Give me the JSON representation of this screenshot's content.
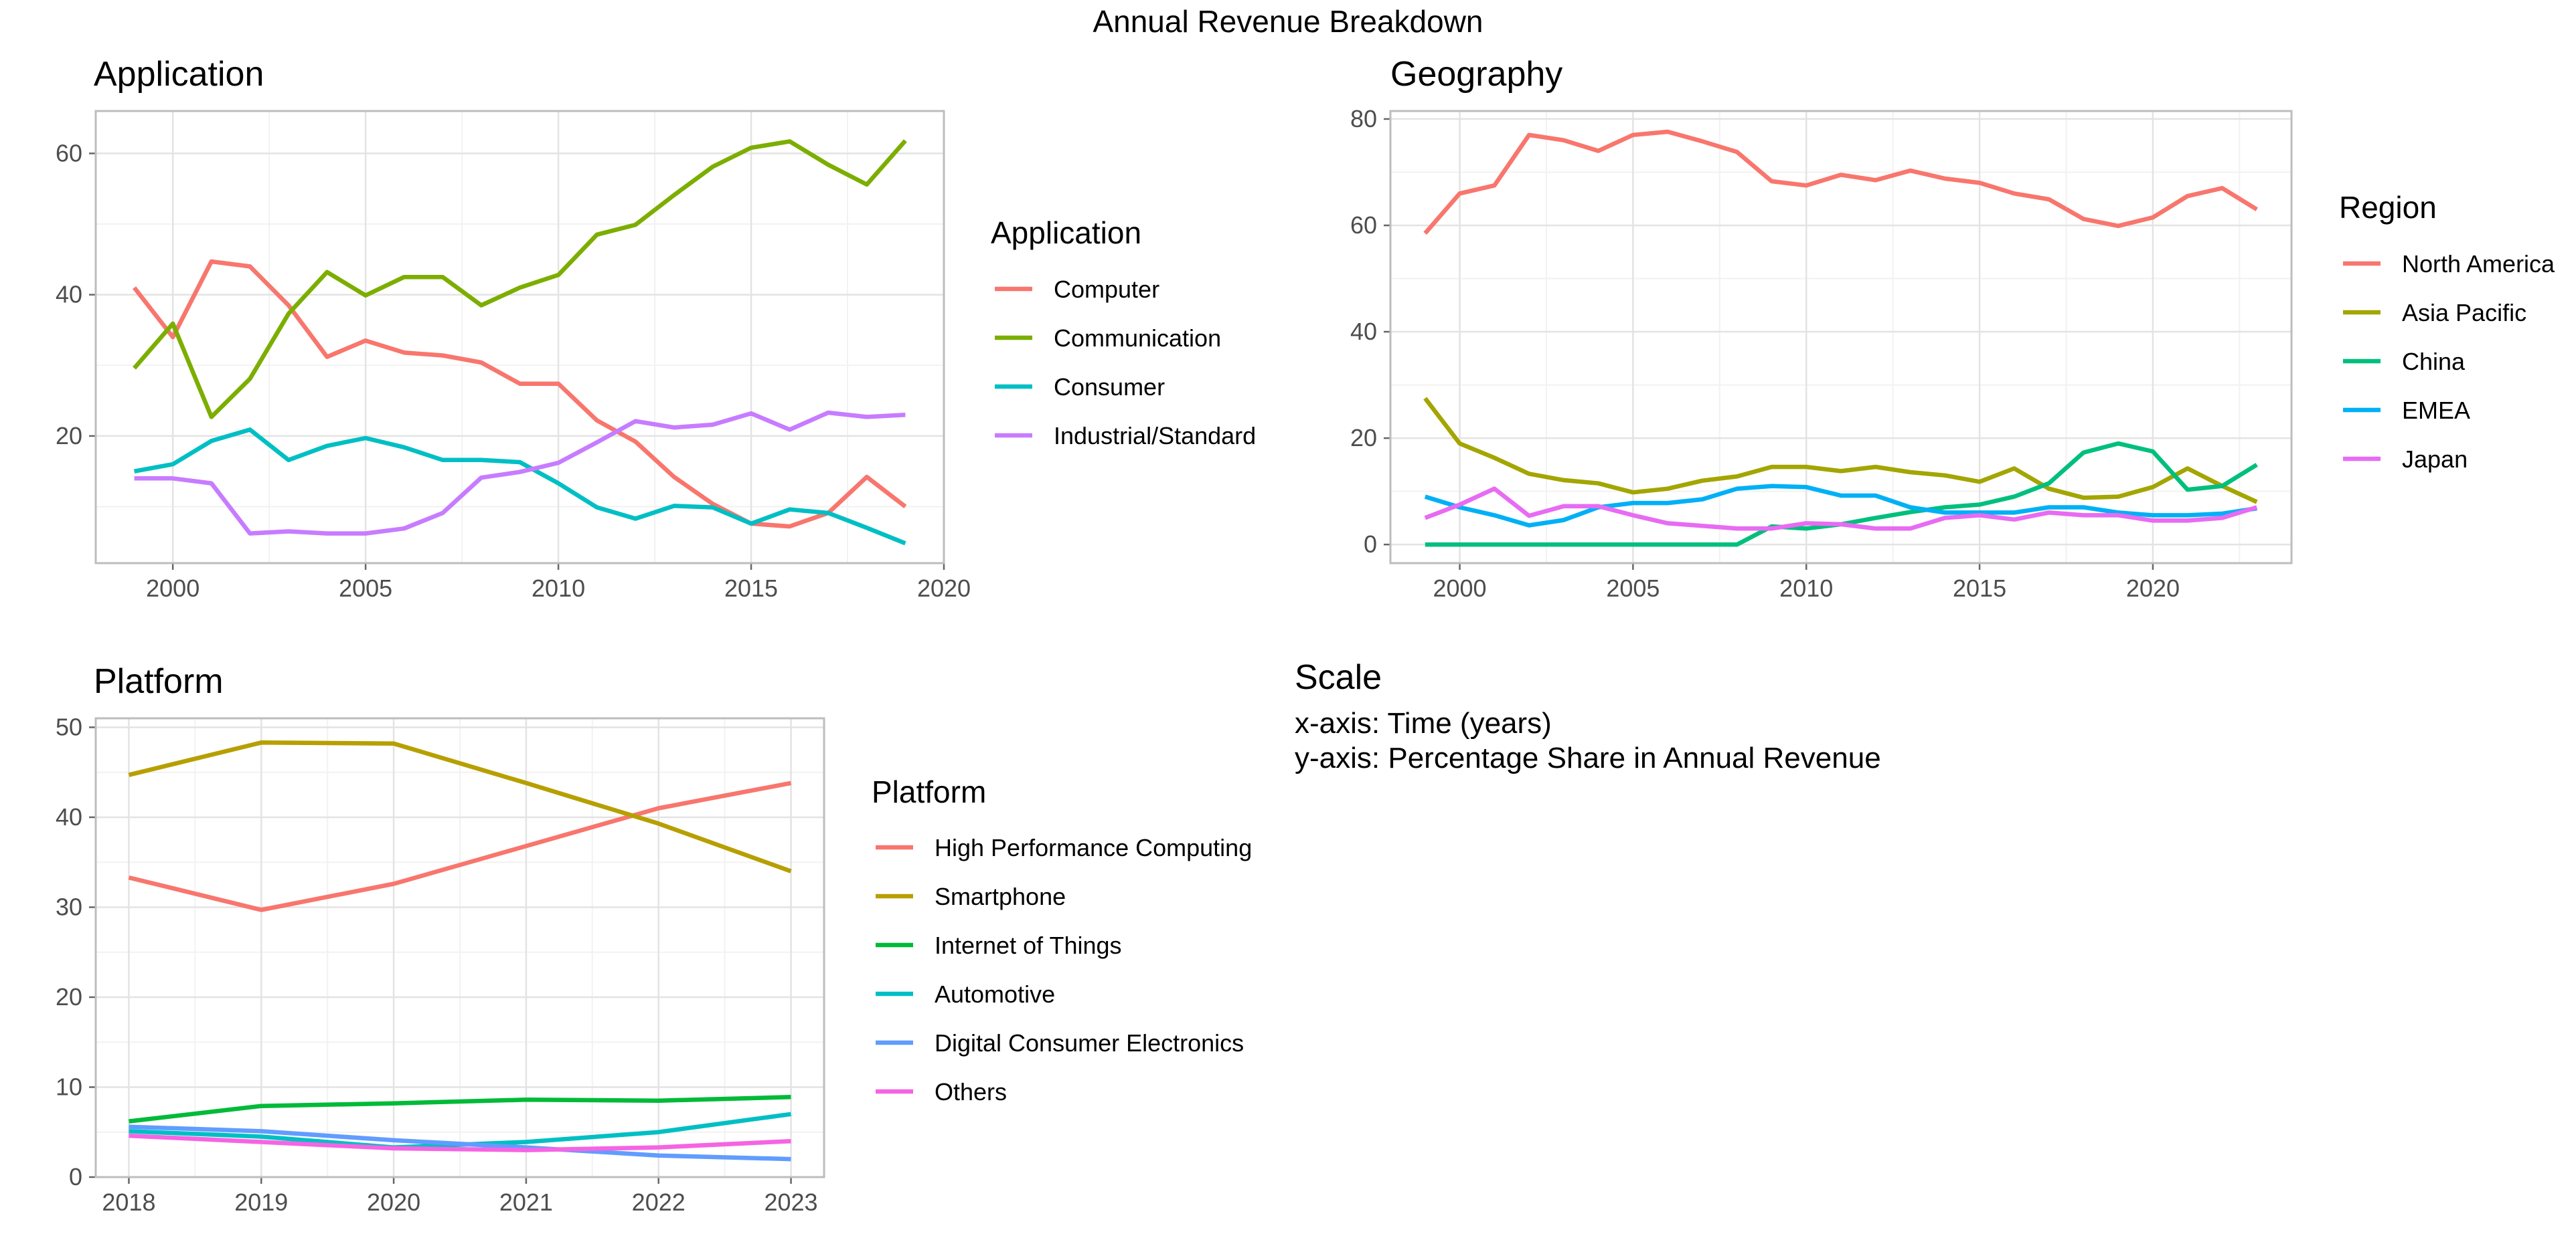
{
  "figure_title": "Annual Revenue Breakdown",
  "scale": {
    "title": "Scale",
    "x_line": "x-axis: Time (years)",
    "y_line": "y-axis: Percentage Share in Annual Revenue"
  },
  "chart_data": [
    {
      "id": "application",
      "type": "line",
      "title": "Application",
      "legend_title": "Application",
      "legend_position": "right",
      "grid": true,
      "xlabel": "",
      "ylabel": "",
      "xlim": [
        1998,
        2020
      ],
      "ylim": [
        2,
        66
      ],
      "xticks": [
        2000,
        2005,
        2010,
        2015,
        2020
      ],
      "yticks": [
        20,
        40,
        60
      ],
      "x": [
        1999,
        2000,
        2001,
        2002,
        2003,
        2004,
        2005,
        2006,
        2007,
        2008,
        2009,
        2010,
        2011,
        2012,
        2013,
        2014,
        2015,
        2016,
        2017,
        2018,
        2019
      ],
      "series": [
        {
          "name": "Computer",
          "color": "#F8766D",
          "values": [
            41,
            34,
            44.7,
            44,
            38.5,
            31.2,
            33.5,
            31.8,
            31.4,
            30.4,
            27.4,
            27.4,
            22.2,
            19.2,
            14.2,
            10.4,
            7.6,
            7.2,
            9.1,
            14.2,
            10
          ]
        },
        {
          "name": "Communication",
          "color": "#7CAE00",
          "values": [
            29.6,
            35.9,
            22.7,
            28.1,
            37.3,
            43.2,
            39.9,
            42.5,
            42.5,
            38.5,
            41,
            42.8,
            48.5,
            49.9,
            54.1,
            58.1,
            60.8,
            61.7,
            58.4,
            55.6,
            61.8
          ]
        },
        {
          "name": "Consumer",
          "color": "#00BFC4",
          "values": [
            15,
            16,
            19.3,
            20.9,
            16.6,
            18.6,
            19.7,
            18.4,
            16.6,
            16.6,
            16.3,
            13.3,
            9.9,
            8.3,
            10.1,
            9.9,
            7.6,
            9.6,
            9.1,
            7,
            4.8
          ]
        },
        {
          "name": "Industrial/Standard",
          "color": "#C77CFF",
          "values": [
            14,
            14,
            13.3,
            6.2,
            6.5,
            6.2,
            6.2,
            6.9,
            9.1,
            14.1,
            14.9,
            16.2,
            19.1,
            22.1,
            21.2,
            21.6,
            23.2,
            20.9,
            23.3,
            22.7,
            23
          ]
        }
      ]
    },
    {
      "id": "geography",
      "type": "line",
      "title": "Geography",
      "legend_title": "Region",
      "legend_position": "right",
      "grid": true,
      "xlabel": "",
      "ylabel": "",
      "xlim": [
        1998,
        2024
      ],
      "ylim": [
        -3.5,
        81.5
      ],
      "xticks": [
        2000,
        2005,
        2010,
        2015,
        2020
      ],
      "yticks": [
        0,
        20,
        40,
        60,
        80
      ],
      "x": [
        1999,
        2000,
        2001,
        2002,
        2003,
        2004,
        2005,
        2006,
        2007,
        2008,
        2009,
        2010,
        2011,
        2012,
        2013,
        2014,
        2015,
        2016,
        2017,
        2018,
        2019,
        2020,
        2021,
        2022,
        2023
      ],
      "series": [
        {
          "name": "North America",
          "color": "#F8766D",
          "values": [
            58.5,
            66,
            67.5,
            77,
            76,
            74,
            77,
            77.6,
            75.8,
            73.8,
            68.3,
            67.5,
            69.5,
            68.5,
            70.3,
            68.8,
            68,
            66,
            64.9,
            61.2,
            59.9,
            61.5,
            65.5,
            67,
            63
          ]
        },
        {
          "name": "Asia Pacific",
          "color": "#A3A500",
          "values": [
            27.5,
            19,
            16.3,
            13.3,
            12.1,
            11.5,
            9.8,
            10.5,
            12,
            12.8,
            14.6,
            14.6,
            13.8,
            14.6,
            13.6,
            13,
            11.8,
            14.3,
            10.5,
            8.8,
            9,
            10.8,
            14.3,
            11,
            8
          ]
        },
        {
          "name": "China",
          "color": "#00BF7D",
          "values": [
            0,
            0,
            0,
            0,
            0,
            0,
            0,
            0,
            0,
            0,
            3.4,
            3,
            3.8,
            5,
            6.1,
            7,
            7.5,
            9,
            11.5,
            17.3,
            19,
            17.5,
            10.3,
            11,
            15
          ]
        },
        {
          "name": "EMEA",
          "color": "#00B0F6",
          "values": [
            9,
            7,
            5.5,
            3.6,
            4.6,
            7,
            7.8,
            7.8,
            8.5,
            10.5,
            11,
            10.8,
            9.2,
            9.2,
            7,
            6,
            6,
            6,
            7,
            7,
            6,
            5.5,
            5.5,
            5.8,
            6.8
          ]
        },
        {
          "name": "Japan",
          "color": "#E76BF3",
          "values": [
            5,
            7.5,
            10.5,
            5.4,
            7.2,
            7.2,
            5.5,
            4,
            3.5,
            3,
            3,
            4,
            3.8,
            3,
            3,
            5,
            5.5,
            4.7,
            6,
            5.5,
            5.5,
            4.5,
            4.5,
            5,
            7
          ]
        }
      ]
    },
    {
      "id": "platform",
      "type": "line",
      "title": "Platform",
      "legend_title": "Platform",
      "legend_position": "right",
      "grid": true,
      "xlabel": "",
      "ylabel": "",
      "xlim": [
        2017.75,
        2023.25
      ],
      "ylim": [
        0,
        51
      ],
      "xticks": [
        2018,
        2019,
        2020,
        2021,
        2022,
        2023
      ],
      "yticks": [
        0,
        10,
        20,
        30,
        40,
        50
      ],
      "x": [
        2018,
        2019,
        2020,
        2021,
        2022,
        2023
      ],
      "series": [
        {
          "name": "High Performance Computing",
          "color": "#F8766D",
          "values": [
            33.3,
            29.7,
            32.6,
            36.8,
            41,
            43.8
          ]
        },
        {
          "name": "Smartphone",
          "color": "#B79F00",
          "values": [
            44.7,
            48.3,
            48.2,
            43.8,
            39.3,
            34
          ]
        },
        {
          "name": "Internet of Things",
          "color": "#00BA38",
          "values": [
            6.2,
            7.9,
            8.2,
            8.6,
            8.5,
            8.9
          ]
        },
        {
          "name": "Automotive",
          "color": "#00BFC4",
          "values": [
            5.1,
            4.5,
            3.3,
            3.9,
            5,
            7
          ]
        },
        {
          "name": "Digital Consumer Electronics",
          "color": "#619CFF",
          "values": [
            5.6,
            5.1,
            4.1,
            3.3,
            2.4,
            2
          ]
        },
        {
          "name": "Others",
          "color": "#F564E3",
          "values": [
            4.6,
            3.9,
            3.2,
            3,
            3.3,
            4
          ]
        }
      ]
    }
  ]
}
